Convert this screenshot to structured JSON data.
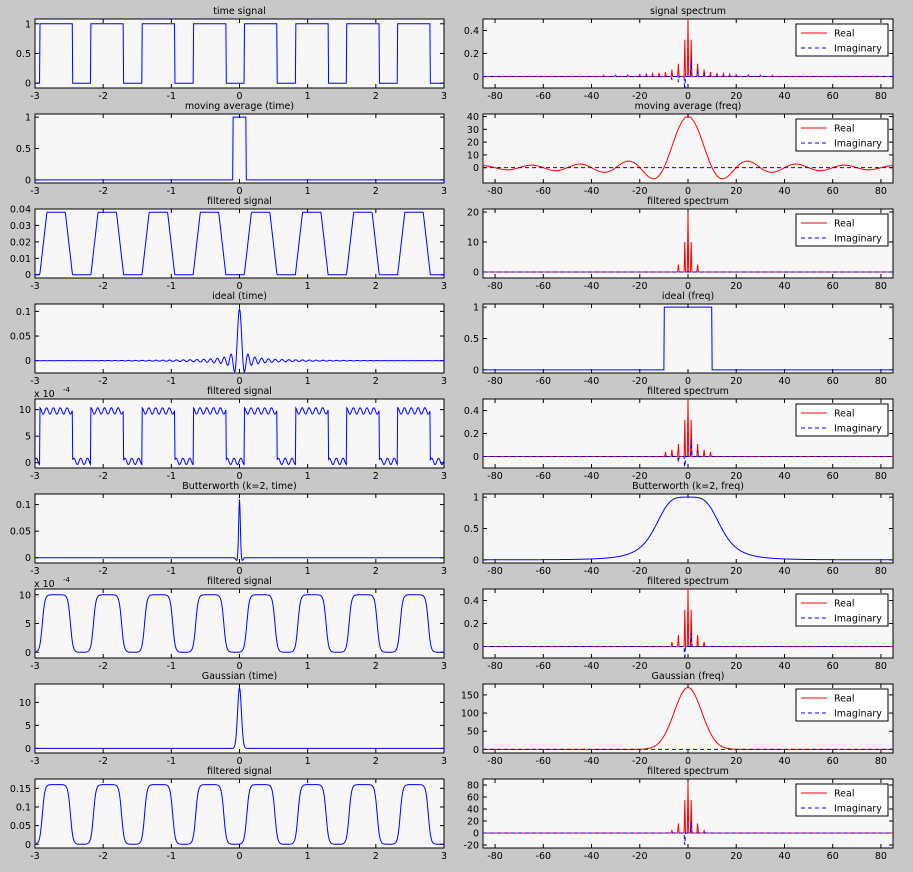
{
  "figure": {
    "background": "#c8c8c8",
    "axes_background": "#f7f7f7"
  },
  "colors": {
    "blue": "#0000ff",
    "red": "#ff0000",
    "axis": "#000000"
  },
  "chart_data": [
    {
      "id": "p1",
      "type": "line",
      "title": "time signal",
      "domain": "time",
      "xlim": [
        -3,
        3
      ],
      "xticks": [
        -3,
        -2,
        -1,
        0,
        1,
        2,
        3
      ],
      "ylim": [
        -0.08,
        1.08
      ],
      "yticks": [
        0,
        0.5,
        1
      ],
      "ytick_labels": [
        "0",
        "0.5",
        "1"
      ],
      "series": [
        {
          "color": "#0000ff",
          "signal": "square",
          "period": 0.75,
          "amplitude": 1
        }
      ]
    },
    {
      "id": "p2",
      "type": "line",
      "title": "signal spectrum",
      "domain": "freq",
      "xlim": [
        -85,
        85
      ],
      "xticks": [
        -80,
        -60,
        -40,
        -20,
        0,
        20,
        40,
        60,
        80
      ],
      "ylim": [
        -0.1,
        0.5
      ],
      "yticks": [
        0,
        0.2,
        0.4
      ],
      "ytick_labels": [
        "0",
        "0.2",
        "0.4"
      ],
      "legend": [
        "Real",
        "Imaginary"
      ],
      "legend_position": "top-right",
      "series": [
        {
          "name": "Real",
          "color": "#ff0000",
          "style": "solid",
          "signal": "spectrum",
          "stems": [
            [
              0,
              0.5
            ],
            [
              -1.33,
              0.32
            ],
            [
              1.33,
              0.32
            ],
            [
              -4,
              0.11
            ],
            [
              4,
              0.11
            ],
            [
              -6.67,
              0.06
            ],
            [
              6.67,
              0.06
            ],
            [
              -9.33,
              0.04
            ],
            [
              9.33,
              0.04
            ],
            [
              -12,
              0.03
            ],
            [
              12,
              0.03
            ],
            [
              -14.7,
              0.025
            ],
            [
              14.7,
              0.025
            ],
            [
              -17.3,
              0.02
            ],
            [
              17.3,
              0.02
            ],
            [
              -20,
              0.017
            ],
            [
              20,
              0.017
            ],
            [
              -25,
              0.014
            ],
            [
              25,
              0.014
            ],
            [
              -30,
              0.012
            ],
            [
              30,
              0.012
            ],
            [
              -35,
              0.01
            ],
            [
              35,
              0.01
            ]
          ]
        },
        {
          "name": "Imaginary",
          "color": "#0000ff",
          "style": "dashed",
          "signal": "spectrum",
          "stems": [
            [
              -1.33,
              -0.15
            ],
            [
              1.33,
              0.15
            ],
            [
              -4,
              -0.05
            ],
            [
              4,
              0.05
            ],
            [
              -6.67,
              -0.03
            ],
            [
              6.67,
              0.03
            ]
          ]
        }
      ]
    },
    {
      "id": "p3",
      "type": "line",
      "title": "moving average (time)",
      "domain": "time",
      "xlim": [
        -3,
        3
      ],
      "xticks": [
        -3,
        -2,
        -1,
        0,
        1,
        2,
        3
      ],
      "ylim": [
        -0.05,
        1.05
      ],
      "yticks": [
        0,
        0.5,
        1
      ],
      "ytick_labels": [
        "0",
        "0.5",
        "1"
      ],
      "series": [
        {
          "color": "#0000ff",
          "signal": "box",
          "width": 0.2,
          "amplitude": 1
        }
      ]
    },
    {
      "id": "p4",
      "type": "line",
      "title": "moving average (freq)",
      "domain": "freq",
      "xlim": [
        -85,
        85
      ],
      "xticks": [
        -80,
        -60,
        -40,
        -20,
        0,
        20,
        40,
        60,
        80
      ],
      "ylim": [
        -12,
        42
      ],
      "yticks": [
        0,
        10,
        20,
        30,
        40
      ],
      "ytick_labels": [
        "0",
        "10",
        "20",
        "30",
        "40"
      ],
      "legend": [
        "Real",
        "Imaginary"
      ],
      "legend_position": "top-right",
      "series": [
        {
          "name": "Real",
          "color": "#ff0000",
          "style": "solid",
          "signal": "sinc",
          "amplitude": 40,
          "zero": 10
        },
        {
          "name": "Imaginary",
          "color": "#0000ff",
          "style": "dashed",
          "signal": "zero"
        }
      ]
    },
    {
      "id": "p5",
      "type": "line",
      "title": "filtered signal",
      "domain": "time",
      "xlim": [
        -3,
        3
      ],
      "xticks": [
        -3,
        -2,
        -1,
        0,
        1,
        2,
        3
      ],
      "ylim": [
        -0.002,
        0.04
      ],
      "yticks": [
        0,
        0.01,
        0.02,
        0.03,
        0.04
      ],
      "ytick_labels": [
        "0",
        "0.01",
        "0.02",
        "0.03",
        "0.04"
      ],
      "series": [
        {
          "color": "#0000ff",
          "signal": "trapezoid",
          "period": 0.75,
          "amplitude": 0.038
        }
      ]
    },
    {
      "id": "p6",
      "type": "line",
      "title": "filtered spectrum",
      "domain": "freq",
      "xlim": [
        -85,
        85
      ],
      "xticks": [
        -80,
        -60,
        -40,
        -20,
        0,
        20,
        40,
        60,
        80
      ],
      "ylim": [
        -2,
        21
      ],
      "yticks": [
        0,
        10,
        20
      ],
      "ytick_labels": [
        "0",
        "10",
        "20"
      ],
      "legend": [
        "Real",
        "Imaginary"
      ],
      "legend_position": "top-right",
      "series": [
        {
          "name": "Real",
          "color": "#ff0000",
          "style": "solid",
          "signal": "spectrum",
          "stems": [
            [
              0,
              20
            ],
            [
              -1.33,
              10
            ],
            [
              1.33,
              10
            ],
            [
              -4,
              2.5
            ],
            [
              4,
              2.5
            ]
          ]
        },
        {
          "name": "Imaginary",
          "color": "#0000ff",
          "style": "dashed",
          "signal": "spectrum",
          "stems": []
        }
      ]
    },
    {
      "id": "p7",
      "type": "line",
      "title": "ideal (time)",
      "domain": "time",
      "xlim": [
        -3,
        3
      ],
      "xticks": [
        -3,
        -2,
        -1,
        0,
        1,
        2,
        3
      ],
      "ylim": [
        -0.025,
        0.115
      ],
      "yticks": [
        0,
        0.05,
        0.1
      ],
      "ytick_labels": [
        "0",
        "0.05",
        "0.1"
      ],
      "series": [
        {
          "color": "#0000ff",
          "signal": "sincTime",
          "amplitude": 0.105,
          "cutoff": 10
        }
      ]
    },
    {
      "id": "p8",
      "type": "line",
      "title": "ideal (freq)",
      "domain": "freq",
      "xlim": [
        -85,
        85
      ],
      "xticks": [
        -80,
        -60,
        -40,
        -20,
        0,
        20,
        40,
        60,
        80
      ],
      "ylim": [
        -0.05,
        1.05
      ],
      "yticks": [
        0,
        0.5,
        1
      ],
      "ytick_labels": [
        "0",
        "0.5",
        "1"
      ],
      "series": [
        {
          "color": "#0000ff",
          "style": "solid",
          "signal": "rect",
          "half_width": 10,
          "amplitude": 1
        }
      ]
    },
    {
      "id": "p9",
      "type": "line",
      "title": "filtered signal",
      "domain": "time",
      "exponent_label": "x 10",
      "exponent": "-4",
      "xlim": [
        -3,
        3
      ],
      "xticks": [
        -3,
        -2,
        -1,
        0,
        1,
        2,
        3
      ],
      "ylim": [
        -1,
        12
      ],
      "yticks": [
        0,
        5,
        10
      ],
      "ytick_labels": [
        "0",
        "5",
        "10"
      ],
      "series": [
        {
          "color": "#0000ff",
          "signal": "ringSquare",
          "period": 0.75,
          "amplitude": 10.5
        }
      ]
    },
    {
      "id": "p10",
      "type": "line",
      "title": "filtered spectrum",
      "domain": "freq",
      "xlim": [
        -85,
        85
      ],
      "xticks": [
        -80,
        -60,
        -40,
        -20,
        0,
        20,
        40,
        60,
        80
      ],
      "ylim": [
        -0.1,
        0.5
      ],
      "yticks": [
        0,
        0.2,
        0.4
      ],
      "ytick_labels": [
        "0",
        "0.2",
        "0.4"
      ],
      "legend": [
        "Real",
        "Imaginary"
      ],
      "legend_position": "top-right",
      "series": [
        {
          "name": "Real",
          "color": "#ff0000",
          "style": "solid",
          "signal": "spectrum",
          "stems": [
            [
              0,
              0.5
            ],
            [
              -1.33,
              0.32
            ],
            [
              1.33,
              0.32
            ],
            [
              -4,
              0.11
            ],
            [
              4,
              0.11
            ],
            [
              -6.67,
              0.06
            ],
            [
              6.67,
              0.06
            ],
            [
              -9.33,
              0.04
            ],
            [
              9.33,
              0.04
            ]
          ]
        },
        {
          "name": "Imaginary",
          "color": "#0000ff",
          "style": "dashed",
          "signal": "spectrum",
          "stems": [
            [
              -1.33,
              -0.15
            ],
            [
              1.33,
              0.15
            ],
            [
              -4,
              -0.05
            ],
            [
              4,
              0.05
            ]
          ]
        }
      ]
    },
    {
      "id": "p11",
      "type": "line",
      "title": "Butterworth (k=2, time)",
      "domain": "time",
      "xlim": [
        -3,
        3
      ],
      "xticks": [
        -3,
        -2,
        -1,
        0,
        1,
        2,
        3
      ],
      "ylim": [
        -0.01,
        0.12
      ],
      "yticks": [
        0,
        0.05,
        0.1
      ],
      "ytick_labels": [
        "0",
        "0.05",
        "0.1"
      ],
      "series": [
        {
          "color": "#0000ff",
          "signal": "butterTime",
          "amplitude": 0.11
        }
      ]
    },
    {
      "id": "p12",
      "type": "line",
      "title": "Butterworth (k=2, freq)",
      "domain": "freq",
      "xlim": [
        -85,
        85
      ],
      "xticks": [
        -80,
        -60,
        -40,
        -20,
        0,
        20,
        40,
        60,
        80
      ],
      "ylim": [
        -0.05,
        1.05
      ],
      "yticks": [
        0,
        0.5,
        1
      ],
      "ytick_labels": [
        "0",
        "0.5",
        "1"
      ],
      "series": [
        {
          "color": "#0000ff",
          "style": "solid",
          "signal": "butterworth",
          "cutoff": 14,
          "order": 2,
          "amplitude": 1
        }
      ]
    },
    {
      "id": "p13",
      "type": "line",
      "title": "filtered signal",
      "domain": "time",
      "exponent_label": "x 10",
      "exponent": "-4",
      "xlim": [
        -3,
        3
      ],
      "xticks": [
        -3,
        -2,
        -1,
        0,
        1,
        2,
        3
      ],
      "ylim": [
        -1,
        11
      ],
      "yticks": [
        0,
        5,
        10
      ],
      "ytick_labels": [
        "0",
        "5",
        "10"
      ],
      "series": [
        {
          "color": "#0000ff",
          "signal": "smoothSquare",
          "period": 0.75,
          "amplitude": 10
        }
      ]
    },
    {
      "id": "p14",
      "type": "line",
      "title": "filtered spectrum",
      "domain": "freq",
      "xlim": [
        -85,
        85
      ],
      "xticks": [
        -80,
        -60,
        -40,
        -20,
        0,
        20,
        40,
        60,
        80
      ],
      "ylim": [
        -0.1,
        0.5
      ],
      "yticks": [
        0,
        0.2,
        0.4
      ],
      "ytick_labels": [
        "0",
        "0.2",
        "0.4"
      ],
      "legend": [
        "Real",
        "Imaginary"
      ],
      "legend_position": "top-right",
      "series": [
        {
          "name": "Real",
          "color": "#ff0000",
          "style": "solid",
          "signal": "spectrum",
          "stems": [
            [
              0,
              0.5
            ],
            [
              -1.33,
              0.32
            ],
            [
              1.33,
              0.32
            ],
            [
              -4,
              0.1
            ],
            [
              4,
              0.1
            ],
            [
              -6.67,
              0.04
            ],
            [
              6.67,
              0.04
            ]
          ]
        },
        {
          "name": "Imaginary",
          "color": "#0000ff",
          "style": "dashed",
          "signal": "spectrum",
          "stems": [
            [
              -1.33,
              -0.12
            ],
            [
              1.33,
              0.12
            ]
          ]
        }
      ]
    },
    {
      "id": "p15",
      "type": "line",
      "title": "Gaussian (time)",
      "domain": "time",
      "xlim": [
        -3,
        3
      ],
      "xticks": [
        -3,
        -2,
        -1,
        0,
        1,
        2,
        3
      ],
      "ylim": [
        -1,
        14
      ],
      "yticks": [
        0,
        5,
        10
      ],
      "ytick_labels": [
        "0",
        "5",
        "10"
      ],
      "series": [
        {
          "color": "#0000ff",
          "signal": "gaussian",
          "sigma": 0.028,
          "amplitude": 13.2
        }
      ]
    },
    {
      "id": "p16",
      "type": "line",
      "title": "Gaussian (freq)",
      "domain": "freq",
      "xlim": [
        -85,
        85
      ],
      "xticks": [
        -80,
        -60,
        -40,
        -20,
        0,
        20,
        40,
        60,
        80
      ],
      "ylim": [
        -10,
        180
      ],
      "yticks": [
        0,
        50,
        100,
        150
      ],
      "ytick_labels": [
        "0",
        "50",
        "100",
        "150"
      ],
      "legend": [
        "Real",
        "Imaginary"
      ],
      "legend_position": "top-right",
      "series": [
        {
          "name": "Real",
          "color": "#ff0000",
          "style": "solid",
          "signal": "gaussian",
          "sigma": 5.7,
          "amplitude": 170
        },
        {
          "name": "Imaginary",
          "color": "#0000ff",
          "style": "dashed",
          "signal": "zero"
        }
      ]
    },
    {
      "id": "p17",
      "type": "line",
      "title": "filtered signal",
      "domain": "time",
      "xlim": [
        -3,
        3
      ],
      "xticks": [
        -3,
        -2,
        -1,
        0,
        1,
        2,
        3
      ],
      "ylim": [
        -0.01,
        0.175
      ],
      "yticks": [
        0,
        0.05,
        0.1,
        0.15
      ],
      "ytick_labels": [
        "0",
        "0.05",
        "0.1",
        "0.15"
      ],
      "series": [
        {
          "color": "#0000ff",
          "signal": "smoothSquare",
          "period": 0.75,
          "amplitude": 0.16
        }
      ]
    },
    {
      "id": "p18",
      "type": "line",
      "title": "filtered spectrum",
      "domain": "freq",
      "xlim": [
        -85,
        85
      ],
      "xticks": [
        -80,
        -60,
        -40,
        -20,
        0,
        20,
        40,
        60,
        80
      ],
      "ylim": [
        -25,
        90
      ],
      "yticks": [
        -20,
        0,
        20,
        40,
        60,
        80
      ],
      "ytick_labels": [
        "-20",
        "0",
        "20",
        "40",
        "60",
        "80"
      ],
      "legend": [
        "Real",
        "Imaginary"
      ],
      "legend_position": "top-right",
      "series": [
        {
          "name": "Real",
          "color": "#ff0000",
          "style": "solid",
          "signal": "spectrum",
          "stems": [
            [
              0,
              85
            ],
            [
              -1.33,
              55
            ],
            [
              1.33,
              55
            ],
            [
              -4,
              16
            ],
            [
              4,
              16
            ],
            [
              -6.67,
              4
            ],
            [
              6.67,
              4
            ]
          ]
        },
        {
          "name": "Imaginary",
          "color": "#0000ff",
          "style": "dashed",
          "signal": "spectrum",
          "stems": [
            [
              -1.33,
              -20
            ],
            [
              1.33,
              20
            ]
          ]
        }
      ]
    }
  ]
}
